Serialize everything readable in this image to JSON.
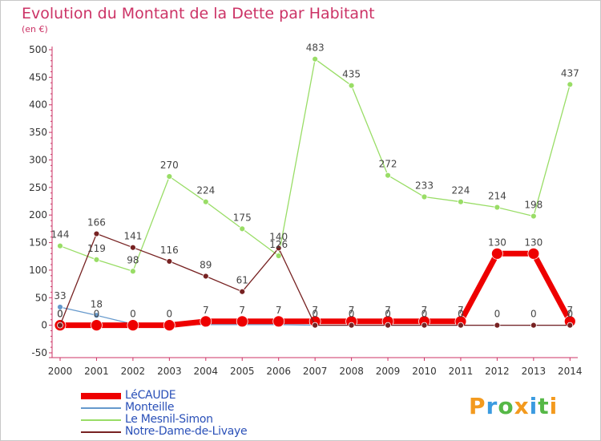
{
  "title": "Evolution du Montant de la Dette par Habitant",
  "subtitle": "(en €)",
  "logo_text": "Proxiti",
  "chart_data": {
    "type": "line",
    "title": "Evolution du Montant de la Dette par Habitant",
    "subtitle": "(en €)",
    "xlabel": "",
    "ylabel": "",
    "x": [
      "2000",
      "2001",
      "2002",
      "2003",
      "2004",
      "2005",
      "2006",
      "2007",
      "2008",
      "2009",
      "2010",
      "2011",
      "2012",
      "2013",
      "2014"
    ],
    "ylim": [
      -50,
      500
    ],
    "yticks": [
      -50,
      0,
      50,
      100,
      150,
      200,
      250,
      300,
      350,
      400,
      450,
      500
    ],
    "grid": false,
    "legend_position": "bottom-left",
    "series": [
      {
        "name": "LéCAUDE",
        "color": "#ee0000",
        "values": [
          0,
          0,
          0,
          0,
          7,
          7,
          7,
          7,
          7,
          7,
          7,
          7,
          130,
          130,
          7
        ],
        "labels": [
          "0",
          "0",
          "0",
          "0",
          "7",
          "7",
          "7",
          "7",
          "7",
          "7",
          "7",
          "7",
          "130",
          "130",
          "7"
        ]
      },
      {
        "name": "Monteille",
        "color": "#6699cc",
        "values": [
          33,
          18,
          2,
          2,
          1,
          1,
          1,
          0,
          0,
          0,
          0,
          0,
          0,
          0,
          0
        ],
        "labels": [
          "33",
          "18",
          "",
          "",
          "",
          "",
          "",
          "",
          "",
          "",
          "",
          "",
          "",
          "",
          ""
        ]
      },
      {
        "name": "Le Mesnil-Simon",
        "color": "#99dd66",
        "values": [
          144,
          119,
          98,
          270,
          224,
          175,
          126,
          483,
          435,
          272,
          233,
          224,
          214,
          198,
          437
        ],
        "labels": [
          "144",
          "119",
          "98",
          "270",
          "224",
          "175",
          "126",
          "483",
          "435",
          "272",
          "233",
          "224",
          "214",
          "198",
          "437"
        ]
      },
      {
        "name": "Notre-Dame-de-Livaye",
        "color": "#772222",
        "values": [
          0,
          166,
          141,
          116,
          89,
          61,
          140,
          0,
          0,
          0,
          0,
          0,
          0,
          0,
          0
        ],
        "labels": [
          "0",
          "166",
          "141",
          "116",
          "89",
          "61",
          "140",
          "0",
          "0",
          "0",
          "0",
          "0",
          "0",
          "0",
          "0"
        ]
      }
    ]
  }
}
